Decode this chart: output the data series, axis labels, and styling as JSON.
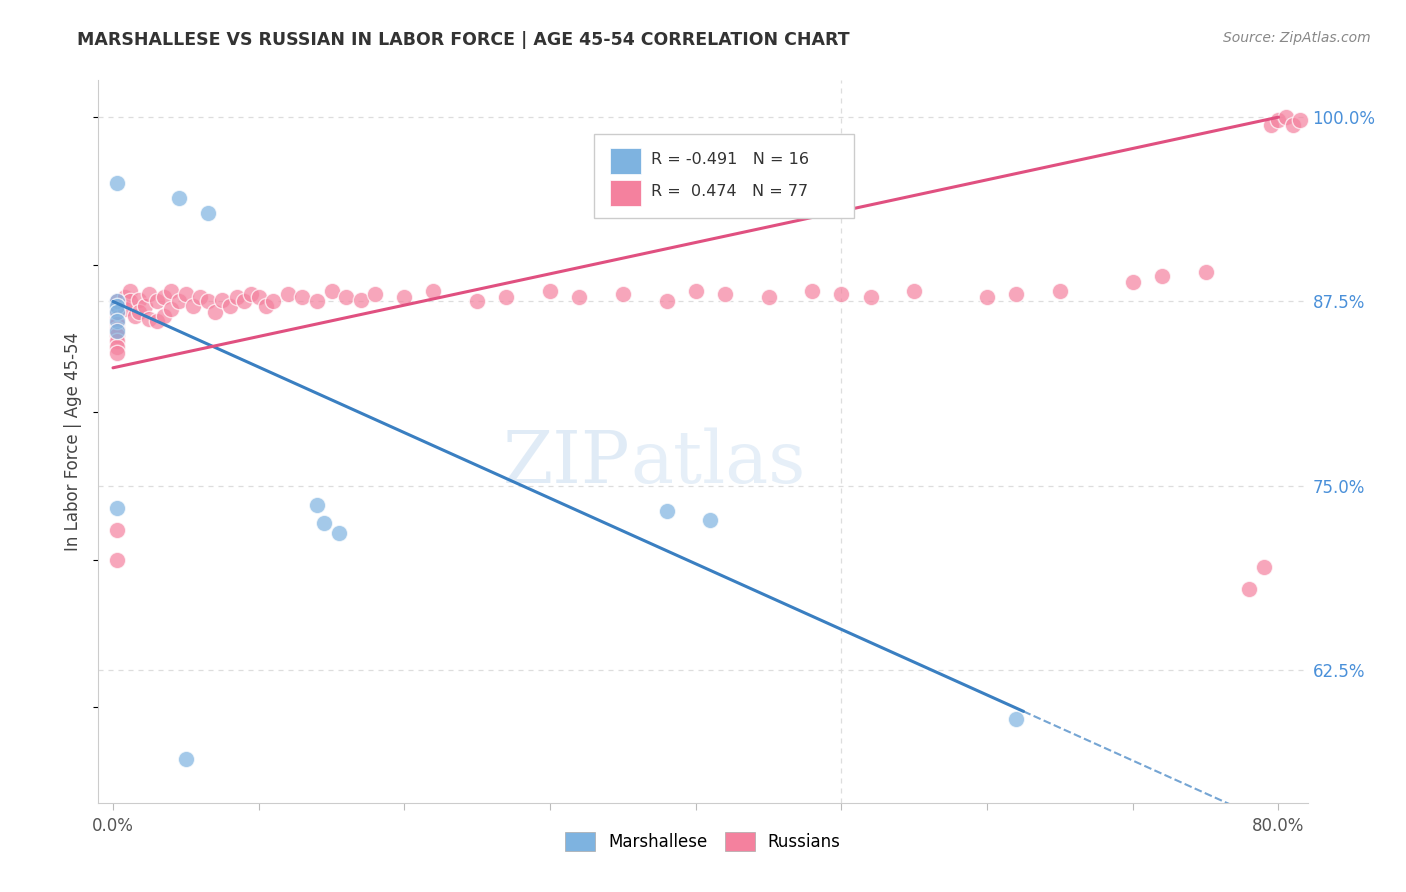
{
  "title": "MARSHALLESE VS RUSSIAN IN LABOR FORCE | AGE 45-54 CORRELATION CHART",
  "source": "Source: ZipAtlas.com",
  "ylabel": "In Labor Force | Age 45-54",
  "xlim": [
    -0.01,
    0.82
  ],
  "ylim": [
    0.535,
    1.025
  ],
  "xtick_positions": [
    0.0,
    0.1,
    0.2,
    0.3,
    0.4,
    0.5,
    0.6,
    0.7,
    0.8
  ],
  "xticklabels": [
    "0.0%",
    "",
    "",
    "",
    "",
    "",
    "",
    "",
    "80.0%"
  ],
  "yticks_right": [
    0.625,
    0.75,
    0.875,
    1.0
  ],
  "ytick_labels_right": [
    "62.5%",
    "75.0%",
    "87.5%",
    "100.0%"
  ],
  "r_marshallese": -0.491,
  "n_marshallese": 16,
  "r_russians": 0.474,
  "n_russians": 77,
  "blue_color": "#7eb3e0",
  "pink_color": "#f4819e",
  "blue_line_color": "#3a7fc1",
  "pink_line_color": "#e05080",
  "watermark_zip": "ZIP",
  "watermark_atlas": "atlas",
  "background_color": "#ffffff",
  "grid_color": "#dddddd",
  "marshallese_x": [
    0.003,
    0.045,
    0.065,
    0.003,
    0.003,
    0.003,
    0.003,
    0.003,
    0.14,
    0.145,
    0.155,
    0.38,
    0.41,
    0.62,
    0.05,
    0.003
  ],
  "marshallese_y": [
    0.955,
    0.945,
    0.935,
    0.875,
    0.872,
    0.868,
    0.862,
    0.855,
    0.737,
    0.725,
    0.718,
    0.733,
    0.727,
    0.592,
    0.565,
    0.735
  ],
  "russians_x": [
    0.003,
    0.003,
    0.003,
    0.003,
    0.003,
    0.003,
    0.003,
    0.003,
    0.003,
    0.003,
    0.008,
    0.008,
    0.012,
    0.012,
    0.015,
    0.018,
    0.018,
    0.022,
    0.025,
    0.025,
    0.03,
    0.03,
    0.035,
    0.035,
    0.04,
    0.04,
    0.045,
    0.05,
    0.055,
    0.06,
    0.065,
    0.07,
    0.075,
    0.08,
    0.085,
    0.09,
    0.095,
    0.1,
    0.105,
    0.11,
    0.12,
    0.13,
    0.14,
    0.15,
    0.16,
    0.17,
    0.18,
    0.2,
    0.22,
    0.25,
    0.27,
    0.3,
    0.32,
    0.35,
    0.38,
    0.4,
    0.42,
    0.45,
    0.48,
    0.5,
    0.52,
    0.55,
    0.6,
    0.62,
    0.65,
    0.7,
    0.72,
    0.75,
    0.78,
    0.79,
    0.795,
    0.8,
    0.805,
    0.81,
    0.815,
    0.003,
    0.003
  ],
  "russians_y": [
    0.875,
    0.871,
    0.868,
    0.864,
    0.86,
    0.856,
    0.852,
    0.848,
    0.844,
    0.84,
    0.878,
    0.87,
    0.882,
    0.875,
    0.865,
    0.876,
    0.868,
    0.872,
    0.88,
    0.863,
    0.875,
    0.862,
    0.878,
    0.865,
    0.882,
    0.87,
    0.875,
    0.88,
    0.872,
    0.878,
    0.875,
    0.868,
    0.876,
    0.872,
    0.878,
    0.875,
    0.88,
    0.878,
    0.872,
    0.875,
    0.88,
    0.878,
    0.875,
    0.882,
    0.878,
    0.876,
    0.88,
    0.878,
    0.882,
    0.875,
    0.878,
    0.882,
    0.878,
    0.88,
    0.875,
    0.882,
    0.88,
    0.878,
    0.882,
    0.88,
    0.878,
    0.882,
    0.878,
    0.88,
    0.882,
    0.888,
    0.892,
    0.895,
    0.68,
    0.695,
    0.995,
    0.998,
    1.0,
    0.995,
    0.998,
    0.72,
    0.7
  ]
}
